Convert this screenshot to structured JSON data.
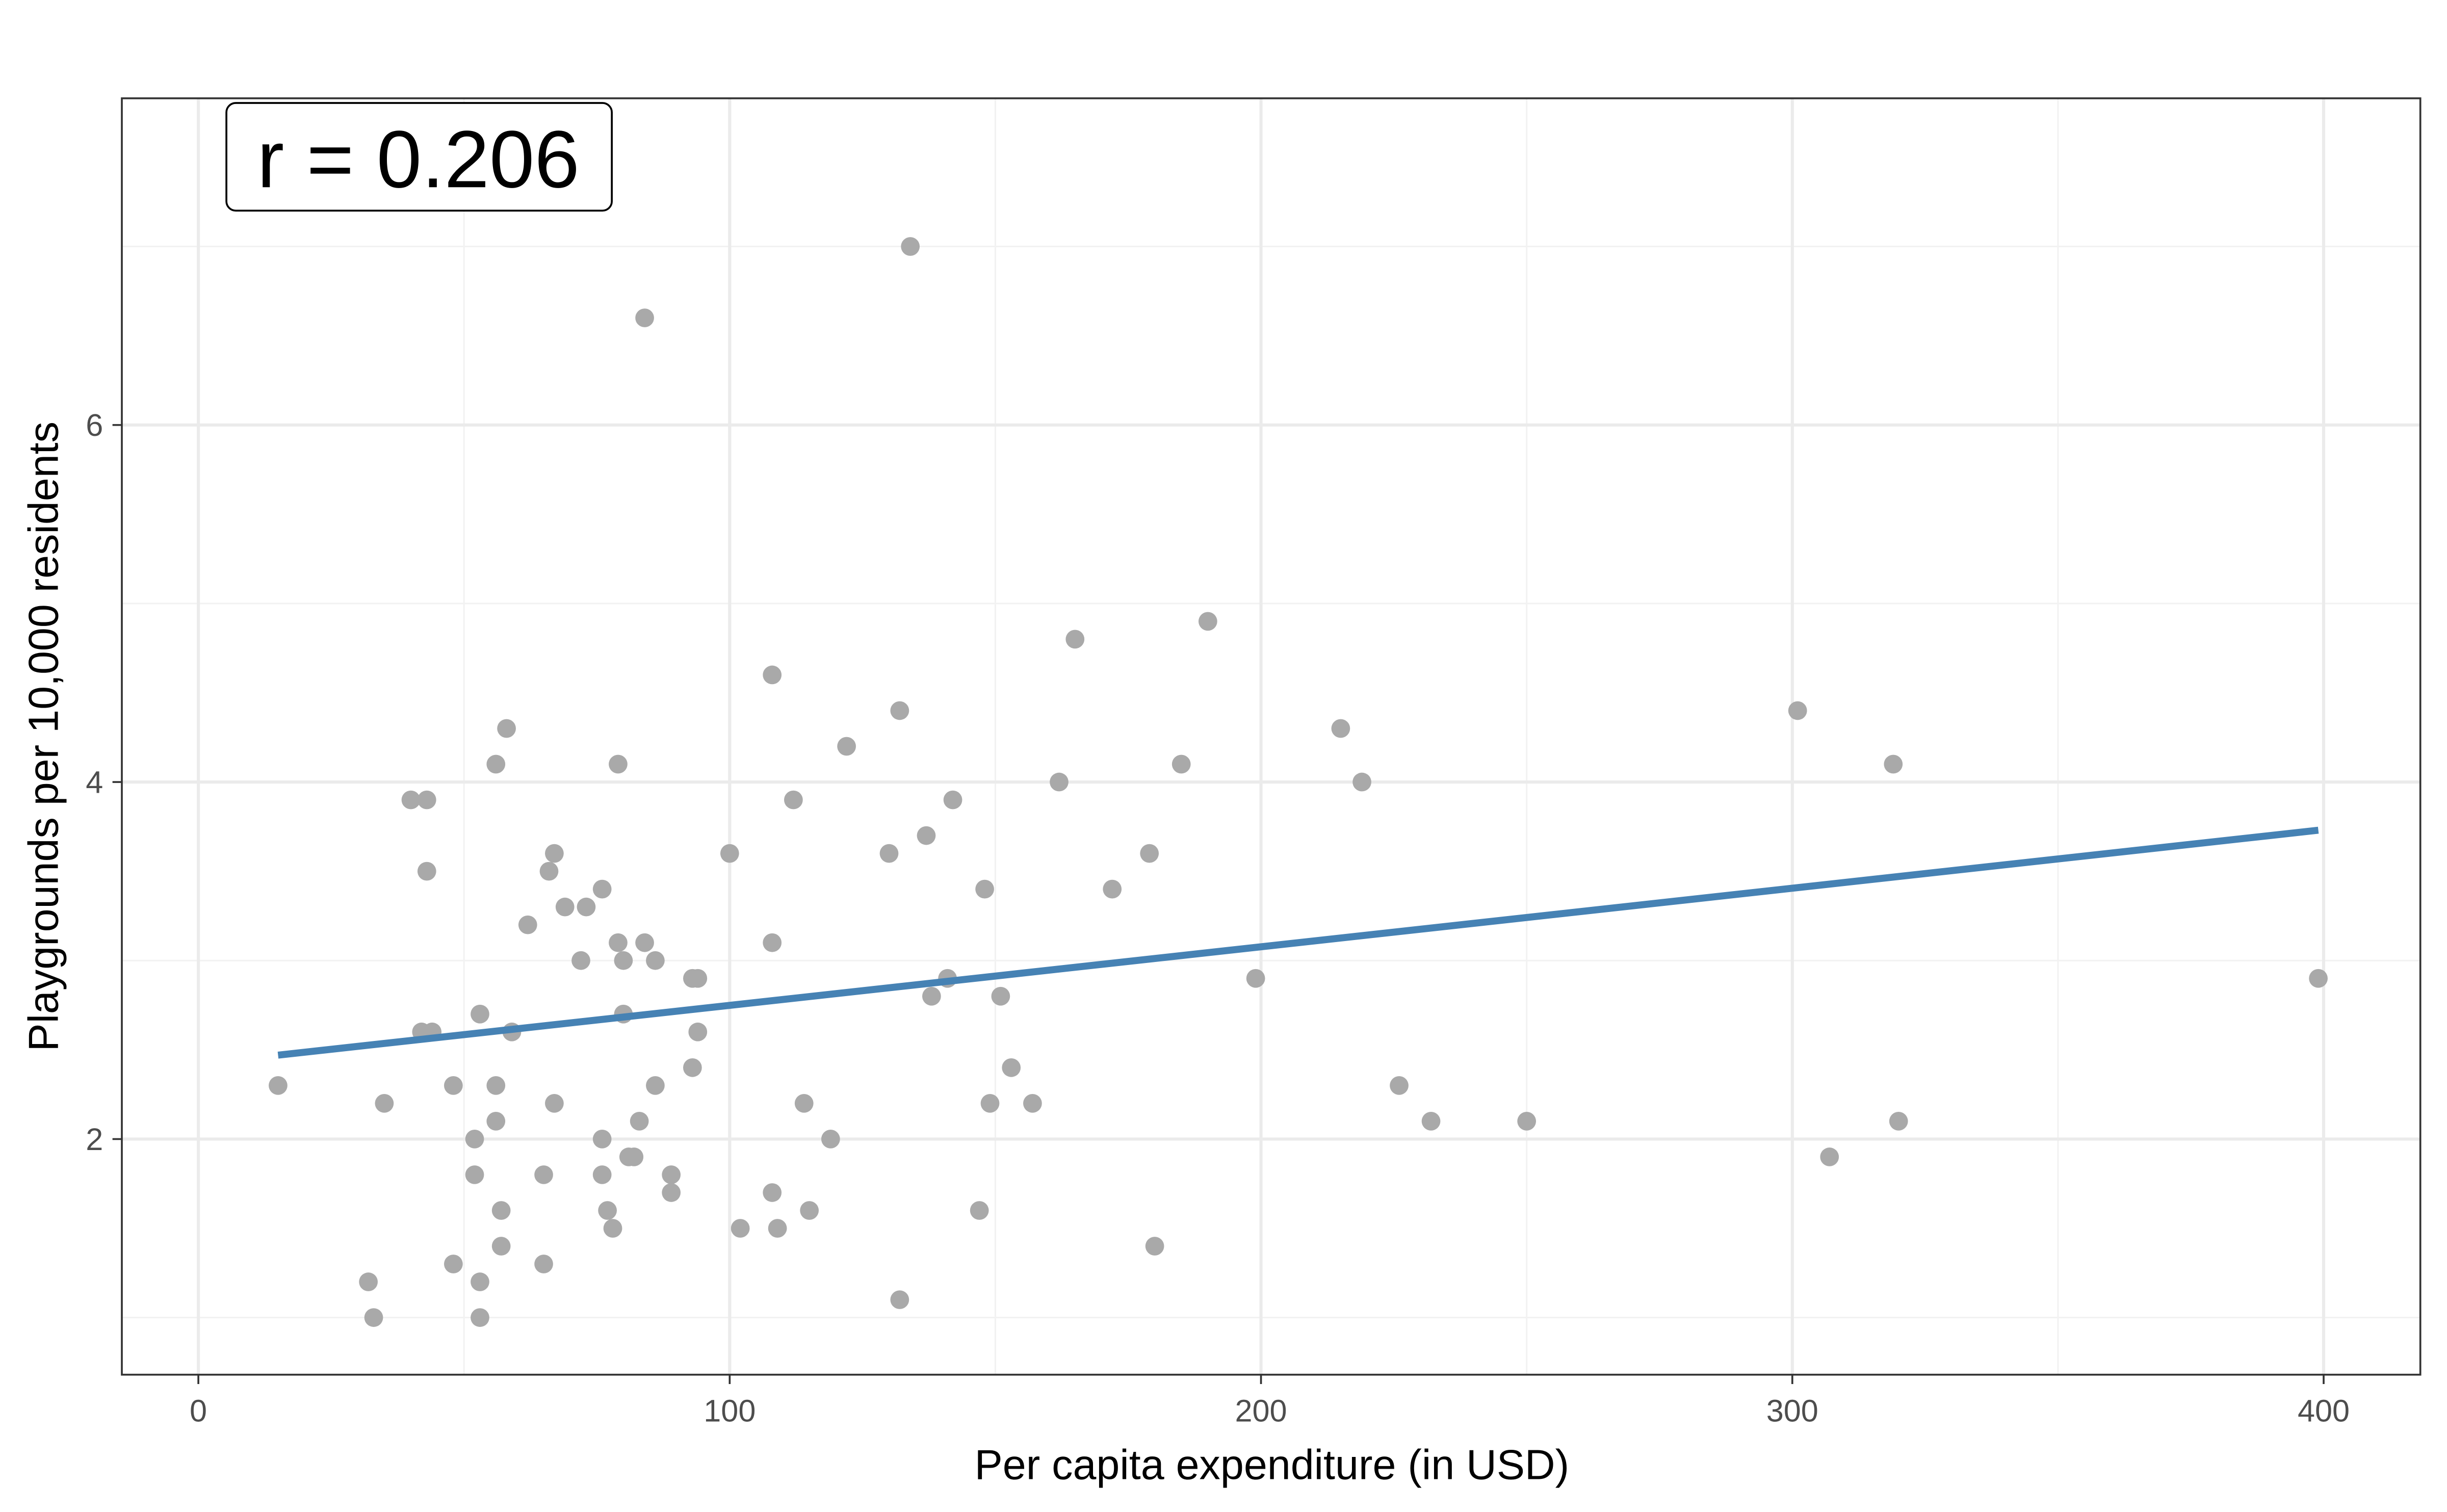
{
  "chart_data": {
    "type": "scatter",
    "title": "",
    "xlabel": "Per capita expenditure (in USD)",
    "ylabel": "Playgrounds per 10,000 residents",
    "xlim": [
      -14.4,
      418.2
    ],
    "ylim": [
      0.68,
      7.83
    ],
    "xticks": [
      0,
      100,
      200,
      300,
      400
    ],
    "xtick_labels": [
      "0",
      "100",
      "200",
      "300",
      "400"
    ],
    "yticks": [
      2,
      4,
      6
    ],
    "ytick_labels": [
      "2",
      "4",
      "6"
    ],
    "x_minor": [
      50,
      150,
      250,
      350
    ],
    "y_minor": [
      1,
      3,
      5,
      7
    ],
    "grid": true,
    "annotation": "r = 0.206",
    "point_color": "#A9A9A9",
    "line_color": "#4682B4",
    "fit_line": {
      "x": [
        15,
        399
      ],
      "y": [
        2.47,
        3.73
      ]
    },
    "points": [
      [
        15,
        2.3
      ],
      [
        32,
        1.2
      ],
      [
        33,
        1.0
      ],
      [
        35,
        2.2
      ],
      [
        40,
        3.9
      ],
      [
        43,
        3.9
      ],
      [
        43,
        3.5
      ],
      [
        42,
        2.6
      ],
      [
        44,
        2.6
      ],
      [
        48,
        2.3
      ],
      [
        48,
        1.3
      ],
      [
        52,
        2.0
      ],
      [
        52,
        1.8
      ],
      [
        53,
        2.7
      ],
      [
        53,
        1.2
      ],
      [
        53,
        1.0
      ],
      [
        56,
        4.1
      ],
      [
        58,
        4.3
      ],
      [
        56,
        2.3
      ],
      [
        56,
        2.1
      ],
      [
        57,
        1.6
      ],
      [
        57,
        1.4
      ],
      [
        59,
        2.6
      ],
      [
        62,
        3.2
      ],
      [
        65,
        1.8
      ],
      [
        65,
        1.3
      ],
      [
        66,
        3.5
      ],
      [
        67,
        3.6
      ],
      [
        67,
        2.2
      ],
      [
        69,
        3.3
      ],
      [
        72,
        3.0
      ],
      [
        73,
        3.3
      ],
      [
        76,
        3.4
      ],
      [
        76,
        2.0
      ],
      [
        76,
        1.8
      ],
      [
        77,
        1.6
      ],
      [
        78,
        1.5
      ],
      [
        79,
        4.1
      ],
      [
        79,
        3.1
      ],
      [
        80,
        3.0
      ],
      [
        80,
        2.7
      ],
      [
        81,
        1.9
      ],
      [
        82,
        1.9
      ],
      [
        83,
        2.1
      ],
      [
        84,
        6.6
      ],
      [
        84,
        3.1
      ],
      [
        86,
        3.0
      ],
      [
        86,
        2.3
      ],
      [
        89,
        1.8
      ],
      [
        89,
        1.7
      ],
      [
        93,
        2.9
      ],
      [
        94,
        2.9
      ],
      [
        94,
        2.6
      ],
      [
        93,
        2.4
      ],
      [
        100,
        3.6
      ],
      [
        102,
        1.5
      ],
      [
        108,
        4.6
      ],
      [
        108,
        3.1
      ],
      [
        108,
        1.7
      ],
      [
        109,
        1.5
      ],
      [
        112,
        3.9
      ],
      [
        114,
        2.2
      ],
      [
        115,
        1.6
      ],
      [
        119,
        2.0
      ],
      [
        122,
        4.2
      ],
      [
        130,
        3.6
      ],
      [
        132,
        4.4
      ],
      [
        132,
        1.1
      ],
      [
        134,
        7.0
      ],
      [
        137,
        3.7
      ],
      [
        138,
        2.8
      ],
      [
        141,
        2.9
      ],
      [
        142,
        3.9
      ],
      [
        147,
        1.6
      ],
      [
        148,
        3.4
      ],
      [
        149,
        2.2
      ],
      [
        151,
        2.8
      ],
      [
        153,
        2.4
      ],
      [
        157,
        2.2
      ],
      [
        162,
        4.0
      ],
      [
        165,
        4.8
      ],
      [
        172,
        3.4
      ],
      [
        179,
        3.6
      ],
      [
        180,
        1.4
      ],
      [
        185,
        4.1
      ],
      [
        190,
        4.9
      ],
      [
        199,
        2.9
      ],
      [
        215,
        4.3
      ],
      [
        219,
        4.0
      ],
      [
        226,
        2.3
      ],
      [
        232,
        2.1
      ],
      [
        250,
        2.1
      ],
      [
        301,
        4.4
      ],
      [
        307,
        1.9
      ],
      [
        319,
        4.1
      ],
      [
        320,
        2.1
      ],
      [
        399,
        2.9
      ]
    ]
  }
}
